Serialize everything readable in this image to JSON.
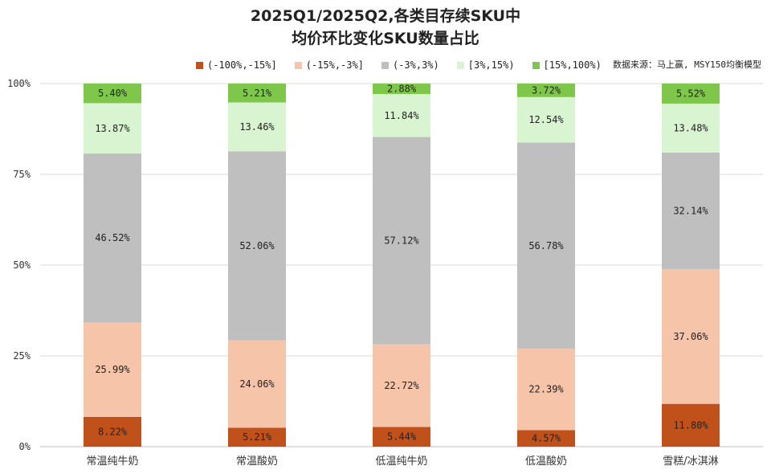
{
  "chart_data": {
    "type": "bar",
    "stacked": true,
    "title_lines": [
      "2025Q1/2025Q2,各类目存续SKU中",
      "均价环比变化SKU数量占比"
    ],
    "source": "数据来源：马上赢, MSY150均衡模型",
    "ylim": [
      0,
      100
    ],
    "yticks": [
      0,
      25,
      50,
      75,
      100
    ],
    "ytick_labels": [
      "0%",
      "25%",
      "50%",
      "75%",
      "100%"
    ],
    "legend_position": "top",
    "categories": [
      "常温纯牛奶",
      "常温酸奶",
      "低温纯牛奶",
      "低温酸奶",
      "雪糕/冰淇淋"
    ],
    "series": [
      {
        "name": "(-100%,-15%]",
        "color": "#c0511a",
        "values": [
          8.22,
          5.21,
          5.44,
          4.57,
          11.8
        ],
        "labels": [
          "8.22%",
          "5.21%",
          "5.44%",
          "4.57%",
          "11.80%"
        ]
      },
      {
        "name": "(-15%,-3%]",
        "color": "#f6c4a8",
        "values": [
          25.99,
          24.06,
          22.72,
          22.39,
          37.06
        ],
        "labels": [
          "25.99%",
          "24.06%",
          "22.72%",
          "22.39%",
          "37.06%"
        ]
      },
      {
        "name": "(-3%,3%)",
        "color": "#bfbfbf",
        "values": [
          46.52,
          52.06,
          57.12,
          56.78,
          32.14
        ],
        "labels": [
          "46.52%",
          "52.06%",
          "57.12%",
          "56.78%",
          "32.14%"
        ]
      },
      {
        "name": "[3%,15%)",
        "color": "#d9f4d0",
        "values": [
          13.87,
          13.46,
          11.84,
          12.54,
          13.48
        ],
        "labels": [
          "13.87%",
          "13.46%",
          "11.84%",
          "12.54%",
          "13.48%"
        ]
      },
      {
        "name": "[15%,100%)",
        "color": "#7fc74a",
        "values": [
          5.4,
          5.21,
          2.88,
          3.72,
          5.52
        ],
        "labels": [
          "5.40%",
          "5.21%",
          "2.88%",
          "3.72%",
          "5.52%"
        ]
      }
    ]
  }
}
